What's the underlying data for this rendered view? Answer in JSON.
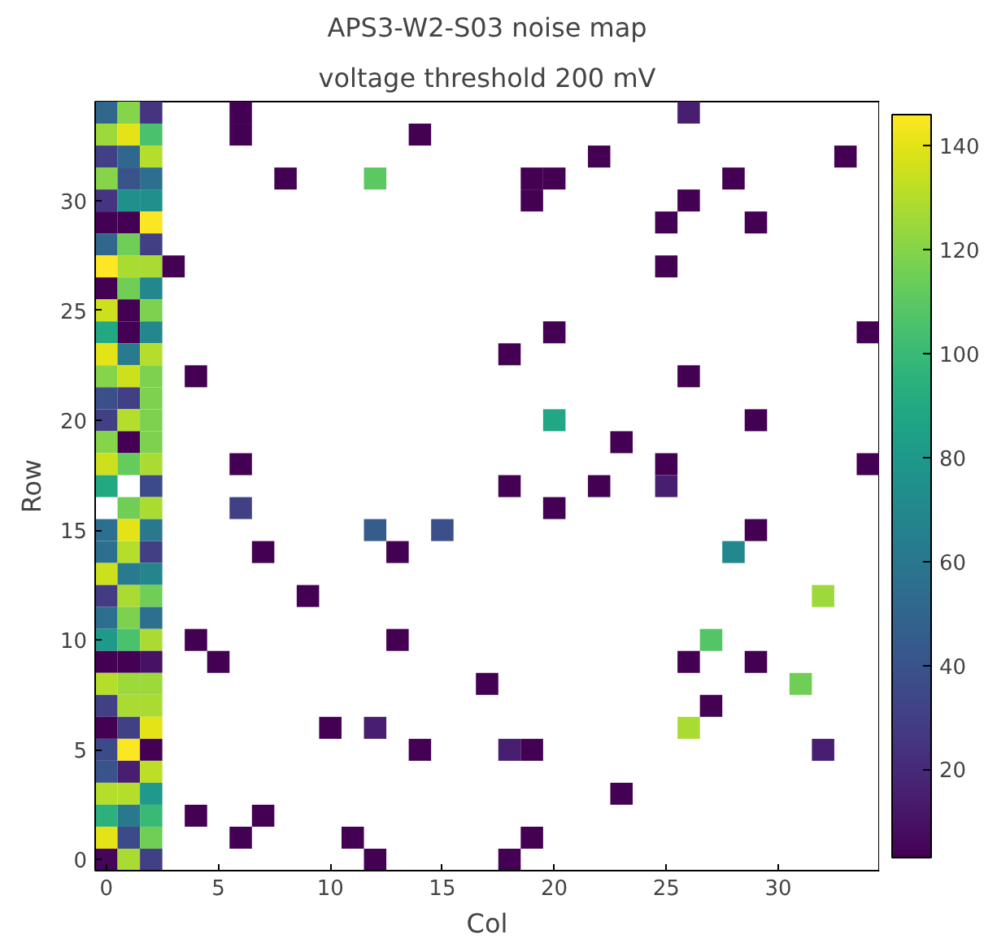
{
  "chart_data": {
    "type": "heatmap",
    "title": "APS3-W2-S03 noise map",
    "subtitle": "voltage threshold 200 mV",
    "xlabel": "Col",
    "ylabel": "Row",
    "categories": [
      "0",
      null,
      null,
      null,
      null,
      "5",
      null,
      null,
      null,
      null,
      "10",
      null,
      null,
      null,
      null,
      "15",
      null,
      null,
      null,
      null,
      "20",
      null,
      null,
      null,
      null,
      "25",
      null,
      null,
      null,
      null,
      "30",
      null,
      null,
      null,
      null
    ],
    "y_categories": [
      null,
      null,
      null,
      null,
      "30",
      null,
      null,
      null,
      null,
      "25",
      null,
      null,
      null,
      null,
      "20",
      null,
      null,
      null,
      null,
      "15",
      null,
      null,
      null,
      null,
      "10",
      null,
      null,
      null,
      null,
      "5",
      null,
      null,
      null,
      null,
      "0"
    ],
    "clim": [
      3,
      146
    ],
    "cticks": [
      20,
      40,
      60,
      80,
      100,
      120,
      140
    ],
    "cells": [
      [
        50,
        120,
        25,
        null,
        null,
        null,
        3,
        null,
        null,
        null,
        null,
        null,
        null,
        null,
        null,
        null,
        null,
        null,
        null,
        null,
        null,
        null,
        null,
        null,
        null,
        null,
        15,
        null,
        null,
        null,
        null,
        null,
        null,
        null,
        null
      ],
      [
        125,
        140,
        105,
        null,
        null,
        null,
        3,
        null,
        null,
        null,
        null,
        null,
        null,
        null,
        3,
        null,
        null,
        null,
        null,
        null,
        null,
        null,
        null,
        null,
        null,
        null,
        null,
        null,
        null,
        null,
        null,
        null,
        null,
        null,
        null
      ],
      [
        30,
        50,
        130,
        null,
        null,
        null,
        null,
        null,
        null,
        null,
        null,
        null,
        null,
        null,
        null,
        null,
        null,
        null,
        null,
        null,
        null,
        null,
        3,
        null,
        null,
        null,
        null,
        null,
        null,
        null,
        null,
        null,
        null,
        3,
        null
      ],
      [
        120,
        40,
        55,
        null,
        null,
        null,
        null,
        null,
        3,
        null,
        null,
        null,
        110,
        null,
        null,
        null,
        null,
        null,
        null,
        3,
        3,
        null,
        null,
        null,
        null,
        null,
        null,
        null,
        3,
        null,
        null,
        null,
        null,
        null,
        null
      ],
      [
        25,
        75,
        75,
        null,
        null,
        null,
        null,
        null,
        null,
        null,
        null,
        null,
        null,
        null,
        null,
        null,
        null,
        null,
        null,
        3,
        null,
        null,
        null,
        null,
        null,
        null,
        3,
        null,
        null,
        null,
        null,
        null,
        null,
        null,
        null
      ],
      [
        3,
        3,
        145,
        null,
        null,
        null,
        null,
        null,
        null,
        null,
        null,
        null,
        null,
        null,
        null,
        null,
        null,
        null,
        null,
        null,
        null,
        null,
        null,
        null,
        null,
        3,
        null,
        null,
        null,
        3,
        null,
        null,
        null,
        null,
        null
      ],
      [
        50,
        115,
        30,
        null,
        null,
        null,
        null,
        null,
        null,
        null,
        null,
        null,
        null,
        null,
        null,
        null,
        null,
        null,
        null,
        null,
        null,
        null,
        null,
        null,
        null,
        null,
        null,
        null,
        null,
        null,
        null,
        null,
        null,
        null,
        null
      ],
      [
        146,
        128,
        128,
        3,
        null,
        null,
        null,
        null,
        null,
        null,
        null,
        null,
        null,
        null,
        null,
        null,
        null,
        null,
        null,
        null,
        null,
        null,
        null,
        null,
        null,
        3,
        null,
        null,
        null,
        null,
        null,
        null,
        null,
        null,
        null
      ],
      [
        3,
        115,
        70,
        null,
        null,
        null,
        null,
        null,
        null,
        null,
        null,
        null,
        null,
        null,
        null,
        null,
        null,
        null,
        null,
        null,
        null,
        null,
        null,
        null,
        null,
        null,
        null,
        null,
        null,
        null,
        null,
        null,
        null,
        null,
        null
      ],
      [
        135,
        3,
        118,
        null,
        null,
        null,
        null,
        null,
        null,
        null,
        null,
        null,
        null,
        null,
        null,
        null,
        null,
        null,
        null,
        null,
        null,
        null,
        null,
        null,
        null,
        null,
        null,
        null,
        null,
        null,
        null,
        null,
        null,
        null,
        null
      ],
      [
        90,
        3,
        70,
        null,
        null,
        null,
        null,
        null,
        null,
        null,
        null,
        null,
        null,
        null,
        null,
        null,
        null,
        null,
        null,
        null,
        3,
        null,
        null,
        null,
        null,
        null,
        null,
        null,
        null,
        null,
        null,
        null,
        null,
        null,
        3
      ],
      [
        140,
        62,
        130,
        null,
        null,
        null,
        null,
        null,
        null,
        null,
        null,
        null,
        null,
        null,
        null,
        null,
        null,
        null,
        3,
        null,
        null,
        null,
        null,
        null,
        null,
        null,
        null,
        null,
        null,
        null,
        null,
        null,
        null,
        null,
        null
      ],
      [
        120,
        135,
        118,
        null,
        3,
        null,
        null,
        null,
        null,
        null,
        null,
        null,
        null,
        null,
        null,
        null,
        null,
        null,
        null,
        null,
        null,
        null,
        null,
        null,
        null,
        null,
        3,
        null,
        null,
        null,
        null,
        null,
        null,
        null,
        null
      ],
      [
        38,
        30,
        118,
        null,
        null,
        null,
        null,
        null,
        null,
        null,
        null,
        null,
        null,
        null,
        null,
        null,
        null,
        null,
        null,
        null,
        null,
        null,
        null,
        null,
        null,
        null,
        null,
        null,
        null,
        null,
        null,
        null,
        null,
        null,
        null
      ],
      [
        30,
        130,
        118,
        null,
        null,
        null,
        null,
        null,
        null,
        null,
        null,
        null,
        null,
        null,
        null,
        null,
        null,
        null,
        null,
        null,
        88,
        null,
        null,
        null,
        null,
        null,
        null,
        null,
        null,
        3,
        null,
        null,
        null,
        null,
        null
      ],
      [
        120,
        3,
        118,
        null,
        null,
        null,
        null,
        null,
        null,
        null,
        null,
        null,
        null,
        null,
        null,
        null,
        null,
        null,
        null,
        null,
        null,
        null,
        null,
        3,
        null,
        null,
        null,
        null,
        null,
        null,
        null,
        null,
        null,
        null,
        null
      ],
      [
        135,
        112,
        128,
        null,
        null,
        null,
        3,
        null,
        null,
        null,
        null,
        null,
        null,
        null,
        null,
        null,
        null,
        null,
        null,
        null,
        null,
        null,
        null,
        null,
        null,
        3,
        null,
        null,
        null,
        null,
        null,
        null,
        null,
        null,
        3
      ],
      [
        90,
        null,
        35,
        null,
        null,
        null,
        null,
        null,
        null,
        null,
        null,
        null,
        null,
        null,
        null,
        null,
        null,
        null,
        3,
        null,
        null,
        null,
        3,
        null,
        null,
        15,
        null,
        null,
        null,
        null,
        null,
        null,
        null,
        null,
        null
      ],
      [
        null,
        115,
        128,
        null,
        null,
        null,
        30,
        null,
        null,
        null,
        null,
        null,
        null,
        null,
        null,
        null,
        null,
        null,
        null,
        null,
        3,
        null,
        null,
        null,
        null,
        null,
        null,
        null,
        null,
        null,
        null,
        null,
        null,
        null,
        null
      ],
      [
        55,
        140,
        60,
        null,
        null,
        null,
        null,
        null,
        null,
        null,
        null,
        null,
        45,
        null,
        null,
        38,
        null,
        null,
        null,
        null,
        null,
        null,
        null,
        null,
        null,
        null,
        null,
        null,
        null,
        3,
        null,
        null,
        null,
        null,
        null
      ],
      [
        55,
        130,
        30,
        null,
        null,
        null,
        null,
        3,
        null,
        null,
        null,
        null,
        null,
        3,
        null,
        null,
        null,
        null,
        null,
        null,
        null,
        null,
        null,
        null,
        null,
        null,
        null,
        null,
        70,
        null,
        null,
        null,
        null,
        null,
        null
      ],
      [
        135,
        62,
        68,
        null,
        null,
        null,
        null,
        null,
        null,
        null,
        null,
        null,
        null,
        null,
        null,
        null,
        null,
        null,
        null,
        null,
        null,
        null,
        null,
        null,
        null,
        null,
        null,
        null,
        null,
        null,
        null,
        null,
        null,
        null,
        null
      ],
      [
        28,
        128,
        115,
        null,
        null,
        null,
        null,
        null,
        null,
        3,
        null,
        null,
        null,
        null,
        null,
        null,
        null,
        null,
        null,
        null,
        null,
        null,
        null,
        null,
        null,
        null,
        null,
        null,
        null,
        null,
        null,
        null,
        125,
        null,
        null
      ],
      [
        55,
        118,
        55,
        null,
        null,
        null,
        null,
        null,
        null,
        null,
        null,
        null,
        null,
        null,
        null,
        null,
        null,
        null,
        null,
        null,
        null,
        null,
        null,
        null,
        null,
        null,
        null,
        null,
        null,
        null,
        null,
        null,
        null,
        null,
        null
      ],
      [
        80,
        105,
        128,
        null,
        3,
        null,
        null,
        null,
        null,
        null,
        null,
        null,
        null,
        3,
        null,
        null,
        null,
        null,
        null,
        null,
        null,
        null,
        null,
        null,
        null,
        null,
        null,
        108,
        null,
        null,
        null,
        null,
        null,
        null,
        null
      ],
      [
        3,
        3,
        10,
        null,
        null,
        3,
        null,
        null,
        null,
        null,
        null,
        null,
        null,
        null,
        null,
        null,
        null,
        null,
        null,
        null,
        null,
        null,
        null,
        null,
        null,
        null,
        3,
        null,
        null,
        3,
        null,
        null,
        null,
        null,
        null
      ],
      [
        130,
        125,
        125,
        null,
        null,
        null,
        null,
        null,
        null,
        null,
        null,
        null,
        null,
        null,
        null,
        null,
        null,
        3,
        null,
        null,
        null,
        null,
        null,
        null,
        null,
        null,
        null,
        null,
        null,
        null,
        null,
        115,
        null,
        null,
        null
      ],
      [
        30,
        128,
        128,
        null,
        null,
        null,
        null,
        null,
        null,
        null,
        null,
        null,
        null,
        null,
        null,
        null,
        null,
        null,
        null,
        null,
        null,
        null,
        null,
        null,
        null,
        null,
        null,
        3,
        null,
        null,
        null,
        null,
        null,
        null,
        null
      ],
      [
        3,
        30,
        140,
        null,
        null,
        null,
        null,
        null,
        null,
        null,
        3,
        null,
        15,
        null,
        null,
        null,
        null,
        null,
        null,
        null,
        null,
        null,
        null,
        null,
        null,
        null,
        128,
        null,
        null,
        null,
        null,
        null,
        null,
        null,
        null
      ],
      [
        35,
        145,
        3,
        null,
        null,
        null,
        null,
        null,
        null,
        null,
        null,
        null,
        null,
        null,
        3,
        null,
        null,
        null,
        15,
        3,
        null,
        null,
        null,
        null,
        null,
        null,
        null,
        null,
        null,
        null,
        null,
        null,
        15,
        null,
        null
      ],
      [
        40,
        15,
        132,
        null,
        null,
        null,
        null,
        null,
        null,
        null,
        null,
        null,
        null,
        null,
        null,
        null,
        null,
        null,
        null,
        null,
        null,
        null,
        null,
        null,
        null,
        null,
        null,
        null,
        null,
        null,
        null,
        null,
        null,
        null,
        null
      ],
      [
        130,
        130,
        80,
        null,
        null,
        null,
        null,
        null,
        null,
        null,
        null,
        null,
        null,
        null,
        null,
        null,
        null,
        null,
        null,
        null,
        null,
        null,
        null,
        3,
        null,
        null,
        null,
        null,
        null,
        null,
        null,
        null,
        null,
        null,
        null
      ],
      [
        95,
        60,
        100,
        null,
        3,
        null,
        null,
        3,
        null,
        null,
        null,
        null,
        null,
        null,
        null,
        null,
        null,
        null,
        null,
        null,
        null,
        null,
        null,
        null,
        null,
        null,
        null,
        null,
        null,
        null,
        null,
        null,
        null,
        null,
        null
      ],
      [
        140,
        35,
        115,
        null,
        null,
        null,
        3,
        null,
        null,
        null,
        null,
        3,
        null,
        null,
        null,
        null,
        null,
        null,
        null,
        3,
        null,
        null,
        null,
        null,
        null,
        null,
        null,
        null,
        null,
        null,
        null,
        null,
        null,
        null,
        null
      ],
      [
        5,
        128,
        30,
        null,
        null,
        null,
        null,
        null,
        null,
        null,
        null,
        null,
        3,
        null,
        null,
        null,
        null,
        null,
        3,
        null,
        null,
        null,
        null,
        null,
        null,
        null,
        null,
        null,
        null,
        null,
        null,
        null,
        null,
        null,
        null
      ]
    ]
  }
}
